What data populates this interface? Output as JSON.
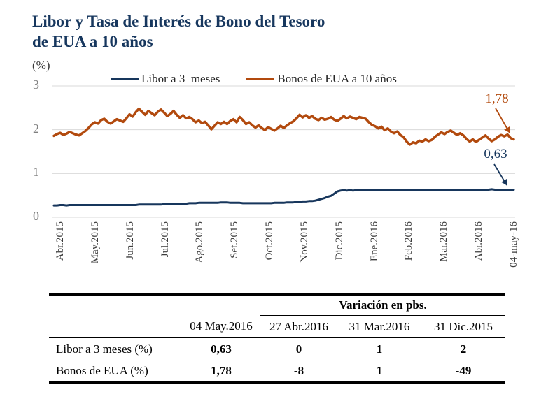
{
  "header": {
    "title_line1": "Libor y Tasa de Interés de Bono del Tesoro",
    "title_line2": "de EUA a 10 años",
    "unit_label": "(%)"
  },
  "chart_data": {
    "type": "line",
    "title": "Libor y Tasa de Interés de Bono del Tesoro de EUA a 10 años",
    "ylabel": "(%)",
    "ylim": [
      0,
      3
    ],
    "yticks": [
      0,
      1,
      2,
      3
    ],
    "grid": true,
    "legend_position": "top",
    "gridline_color": "#d9d9d9",
    "categories": [
      "Abr.2015",
      "May.2015",
      "Jun.2015",
      "Jul.2015",
      "Ago.2015",
      "Set.2015",
      "Oct.2015",
      "Nov.2015",
      "Dic.2015",
      "Ene.2016",
      "Feb.2016",
      "Mar.2016",
      "Abr.2016",
      "04-may-16"
    ],
    "series": [
      {
        "name": "Libor a 3  meses",
        "color": "#17365c",
        "end_label": "0,63",
        "end_value": 0.63,
        "values": [
          0.27,
          0.27,
          0.28,
          0.28,
          0.27,
          0.28,
          0.28,
          0.28,
          0.28,
          0.28,
          0.28,
          0.28,
          0.28,
          0.28,
          0.28,
          0.28,
          0.28,
          0.28,
          0.28,
          0.28,
          0.28,
          0.28,
          0.28,
          0.28,
          0.28,
          0.28,
          0.28,
          0.29,
          0.29,
          0.29,
          0.29,
          0.29,
          0.29,
          0.29,
          0.29,
          0.3,
          0.3,
          0.3,
          0.3,
          0.31,
          0.31,
          0.31,
          0.31,
          0.32,
          0.32,
          0.32,
          0.33,
          0.33,
          0.33,
          0.33,
          0.33,
          0.33,
          0.33,
          0.34,
          0.34,
          0.34,
          0.33,
          0.33,
          0.33,
          0.33,
          0.32,
          0.32,
          0.32,
          0.32,
          0.32,
          0.32,
          0.32,
          0.32,
          0.32,
          0.32,
          0.33,
          0.33,
          0.33,
          0.33,
          0.34,
          0.34,
          0.34,
          0.35,
          0.35,
          0.36,
          0.36,
          0.37,
          0.37,
          0.38,
          0.4,
          0.42,
          0.44,
          0.47,
          0.49,
          0.54,
          0.59,
          0.61,
          0.62,
          0.61,
          0.62,
          0.61,
          0.62,
          0.62,
          0.62,
          0.62,
          0.62,
          0.62,
          0.62,
          0.62,
          0.62,
          0.62,
          0.62,
          0.62,
          0.62,
          0.62,
          0.62,
          0.62,
          0.62,
          0.62,
          0.62,
          0.62,
          0.62,
          0.63,
          0.63,
          0.63,
          0.63,
          0.63,
          0.63,
          0.63,
          0.63,
          0.63,
          0.63,
          0.63,
          0.63,
          0.63,
          0.63,
          0.63,
          0.63,
          0.63,
          0.63,
          0.63,
          0.63,
          0.63,
          0.63,
          0.64,
          0.63,
          0.63,
          0.63,
          0.63,
          0.63,
          0.63,
          0.63
        ]
      },
      {
        "name": "Bonos de EUA a 10 años",
        "color": "#b24a0e",
        "end_label": "1,78",
        "end_value": 1.78,
        "values": [
          1.86,
          1.9,
          1.93,
          1.88,
          1.91,
          1.95,
          1.92,
          1.89,
          1.87,
          1.92,
          1.97,
          2.04,
          2.12,
          2.17,
          2.14,
          2.22,
          2.25,
          2.18,
          2.14,
          2.19,
          2.24,
          2.21,
          2.18,
          2.26,
          2.35,
          2.3,
          2.4,
          2.48,
          2.41,
          2.34,
          2.43,
          2.38,
          2.33,
          2.41,
          2.46,
          2.39,
          2.31,
          2.36,
          2.43,
          2.34,
          2.27,
          2.33,
          2.26,
          2.29,
          2.24,
          2.17,
          2.21,
          2.15,
          2.18,
          2.1,
          2.01,
          2.09,
          2.17,
          2.13,
          2.18,
          2.13,
          2.2,
          2.24,
          2.17,
          2.29,
          2.22,
          2.13,
          2.17,
          2.1,
          2.05,
          2.1,
          2.04,
          1.99,
          2.06,
          2.02,
          1.98,
          2.03,
          2.09,
          2.04,
          2.1,
          2.15,
          2.19,
          2.26,
          2.34,
          2.28,
          2.33,
          2.27,
          2.31,
          2.25,
          2.22,
          2.27,
          2.23,
          2.25,
          2.29,
          2.23,
          2.2,
          2.25,
          2.31,
          2.26,
          2.3,
          2.27,
          2.24,
          2.29,
          2.27,
          2.25,
          2.17,
          2.11,
          2.08,
          2.03,
          2.07,
          1.99,
          2.03,
          1.96,
          1.92,
          1.96,
          1.88,
          1.83,
          1.73,
          1.66,
          1.71,
          1.69,
          1.75,
          1.73,
          1.78,
          1.74,
          1.77,
          1.84,
          1.89,
          1.94,
          1.9,
          1.95,
          1.98,
          1.93,
          1.88,
          1.92,
          1.87,
          1.79,
          1.73,
          1.78,
          1.72,
          1.77,
          1.82,
          1.87,
          1.8,
          1.74,
          1.78,
          1.84,
          1.88,
          1.85,
          1.89,
          1.81,
          1.78
        ]
      }
    ]
  },
  "table": {
    "group_header": "Variación en pbs.",
    "columns": [
      "",
      "04 May.2016",
      "27 Abr.2016",
      "31 Mar.2016",
      "31 Dic.2015"
    ],
    "rows": [
      {
        "label": "Libor a 3 meses (%)",
        "values": [
          "0,63",
          "0",
          "1",
          "2"
        ]
      },
      {
        "label": "Bonos de EUA (%)",
        "values": [
          "1,78",
          "-8",
          "1",
          "-49"
        ]
      }
    ]
  }
}
